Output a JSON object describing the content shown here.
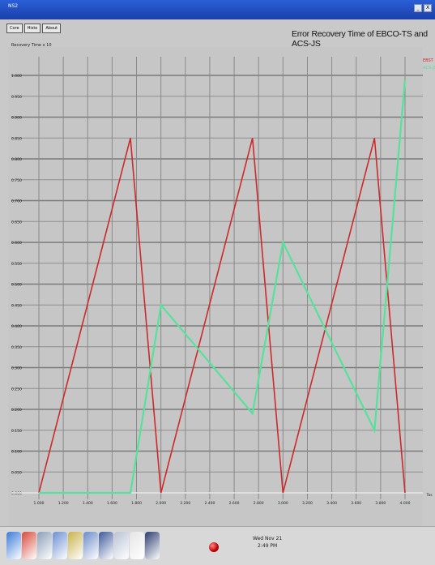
{
  "window": {
    "title": "NS2",
    "min_label": "_",
    "close_label": "X"
  },
  "menu": [
    {
      "label": "Core"
    },
    {
      "label": "Histo"
    },
    {
      "label": "About"
    }
  ],
  "chart_data": {
    "type": "line",
    "title": "Error Recovery Time of EBCO-TS and ACS-JS",
    "ylabel": "Recovery Time x 10",
    "xlabel": "Tas",
    "xlim": [
      1000,
      4000
    ],
    "ylim": [
      0,
      2000
    ],
    "x_ticks": [
      "1.000",
      "1.200",
      "1.400",
      "1.600",
      "1.800",
      "2.000",
      "2.200",
      "2.400",
      "2.600",
      "2.800",
      "3.000",
      "3.200",
      "3.400",
      "3.600",
      "3.800",
      "4.000"
    ],
    "y_ticks": [
      "0.000",
      "0.050",
      "0.100",
      "0.150",
      "0.200",
      "0.250",
      "0.300",
      "0.350",
      "0.400",
      "0.450",
      "0.500",
      "0.550",
      "0.600",
      "0.650",
      "0.700",
      "0.750",
      "0.800",
      "0.850",
      "0.900",
      "0.950",
      "1.000"
    ],
    "legend": [
      "EBST",
      "ACS-JS"
    ],
    "legend_position": "top-right",
    "grid": true,
    "series": [
      {
        "name": "EBST",
        "color": "#cc2a2a",
        "points": [
          [
            1000,
            0
          ],
          [
            1750,
            1700
          ],
          [
            2000,
            0
          ],
          [
            2750,
            1700
          ],
          [
            3000,
            0
          ],
          [
            3750,
            1700
          ],
          [
            4000,
            0
          ]
        ]
      },
      {
        "name": "ACS-JS",
        "color": "#55e29a",
        "points": [
          [
            1000,
            0
          ],
          [
            1750,
            0
          ],
          [
            2000,
            900
          ],
          [
            2750,
            380
          ],
          [
            3000,
            1200
          ],
          [
            3750,
            300
          ],
          [
            4000,
            1980
          ]
        ]
      }
    ]
  },
  "taskbar": {
    "date": "Wed Nov 21",
    "time": "2:49 PM",
    "icons": [
      "globe-icon",
      "rocket-icon",
      "network-icon",
      "people-icon",
      "printer-icon",
      "chart-icon",
      "monitor-icon",
      "window-icon",
      "files-icon",
      "terminal-icon"
    ]
  }
}
